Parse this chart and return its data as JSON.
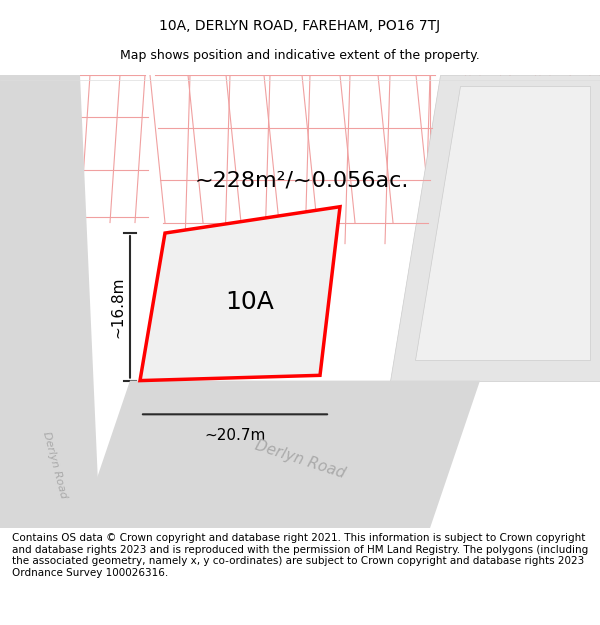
{
  "title": "10A, DERLYN ROAD, FAREHAM, PO16 7TJ",
  "subtitle": "Map shows position and indicative extent of the property.",
  "footer": "Contains OS data © Crown copyright and database right 2021. This information is subject to Crown copyright and database rights 2023 and is reproduced with the permission of HM Land Registry. The polygons (including the associated geometry, namely x, y co-ordinates) are subject to Crown copyright and database rights 2023 Ordnance Survey 100026316.",
  "area_label": "~228m²/~0.056ac.",
  "label_10A": "10A",
  "width_label": "~20.7m",
  "height_label": "~16.8m",
  "road_label_1": "Derlyn Road",
  "road_label_2": "Derlyn Road",
  "bg_color": "#f5f5f5",
  "map_bg": "#f0efee",
  "plot_fill": "#dcdcdc",
  "red_outline": "#ff0000",
  "grid_line_color": "#f0a0a0",
  "road_color": "#d8d8d8",
  "building_color": "#e8e8e8",
  "dim_line_color": "#2a2a2a",
  "title_fontsize": 10,
  "subtitle_fontsize": 9,
  "footer_fontsize": 7.5,
  "area_fontsize": 16,
  "label_fontsize": 18,
  "dim_fontsize": 11,
  "road_fontsize": 11
}
